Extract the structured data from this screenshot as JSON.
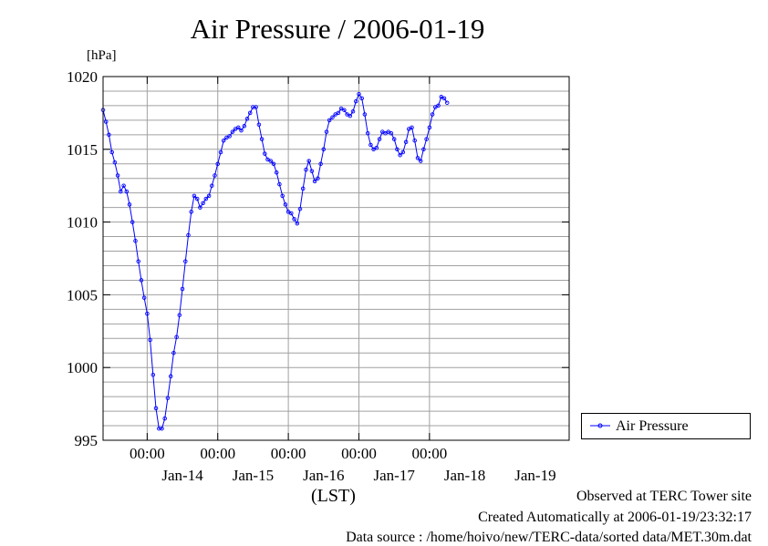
{
  "title": "Air Pressure / 2006-01-19",
  "y_unit": "[hPa]",
  "x_axis_label": "(LST)",
  "legend": {
    "label": "Air Pressure"
  },
  "footer": {
    "observed": "Observed at TERC Tower site",
    "created": "Created Automatically at 2006-01-19/23:32:17",
    "source": "Data source : /home/hoivo/new/TERC-data/sorted  data/MET.30m.dat"
  },
  "colors": {
    "series": "#0000ff",
    "grid": "#a0a0a0",
    "axis": "#000000"
  },
  "chart_data": {
    "type": "line",
    "title": "Air Pressure / 2006-01-19",
    "ylabel": "[hPa]",
    "xlabel": "(LST)",
    "ylim": [
      995,
      1020
    ],
    "y_ticks": [
      "995",
      "1000",
      "1005",
      "1010",
      "1015",
      "1020"
    ],
    "x_range": [
      "2006-01-13 09:00",
      "2006-01-19 23:30"
    ],
    "x_tick_times": [
      "2006-01-14 00:00",
      "2006-01-15 00:00",
      "2006-01-16 00:00",
      "2006-01-17 00:00",
      "2006-01-18 00:00"
    ],
    "x_tick_labels": [
      "00:00",
      "00:00",
      "00:00",
      "00:00",
      "00:00"
    ],
    "x_day_labels": [
      {
        "text": "Jan-14",
        "at": "2006-01-14 12:00"
      },
      {
        "text": "Jan-15",
        "at": "2006-01-15 12:00"
      },
      {
        "text": "Jan-16",
        "at": "2006-01-16 12:00"
      },
      {
        "text": "Jan-17",
        "at": "2006-01-17 12:00"
      },
      {
        "text": "Jan-18",
        "at": "2006-01-18 12:00"
      },
      {
        "text": "Jan-19",
        "at": "2006-01-19 12:00"
      }
    ],
    "grid": true,
    "legend_position": "right",
    "series": [
      {
        "name": "Air Pressure",
        "color": "#0000ff",
        "points": [
          [
            "2006-01-13 09:00",
            1017.7
          ],
          [
            "2006-01-13 10:00",
            1016.9
          ],
          [
            "2006-01-13 11:00",
            1016.0
          ],
          [
            "2006-01-13 12:00",
            1014.8
          ],
          [
            "2006-01-13 13:00",
            1014.1
          ],
          [
            "2006-01-13 14:00",
            1013.2
          ],
          [
            "2006-01-13 15:00",
            1012.1
          ],
          [
            "2006-01-13 16:00",
            1012.5
          ],
          [
            "2006-01-13 17:00",
            1012.1
          ],
          [
            "2006-01-13 18:00",
            1011.2
          ],
          [
            "2006-01-13 19:00",
            1010.0
          ],
          [
            "2006-01-13 20:00",
            1008.7
          ],
          [
            "2006-01-13 21:00",
            1007.3
          ],
          [
            "2006-01-13 22:00",
            1006.0
          ],
          [
            "2006-01-13 23:00",
            1004.8
          ],
          [
            "2006-01-14 00:00",
            1003.7
          ],
          [
            "2006-01-14 01:00",
            1001.9
          ],
          [
            "2006-01-14 02:00",
            999.5
          ],
          [
            "2006-01-14 03:00",
            997.2
          ],
          [
            "2006-01-14 04:00",
            995.8
          ],
          [
            "2006-01-14 05:00",
            995.8
          ],
          [
            "2006-01-14 06:00",
            996.5
          ],
          [
            "2006-01-14 07:00",
            997.9
          ],
          [
            "2006-01-14 08:00",
            999.4
          ],
          [
            "2006-01-14 09:00",
            1001.0
          ],
          [
            "2006-01-14 10:00",
            1002.1
          ],
          [
            "2006-01-14 11:00",
            1003.6
          ],
          [
            "2006-01-14 12:00",
            1005.4
          ],
          [
            "2006-01-14 13:00",
            1007.3
          ],
          [
            "2006-01-14 14:00",
            1009.1
          ],
          [
            "2006-01-14 15:00",
            1010.7
          ],
          [
            "2006-01-14 16:00",
            1011.8
          ],
          [
            "2006-01-14 17:00",
            1011.6
          ],
          [
            "2006-01-14 18:00",
            1011.0
          ],
          [
            "2006-01-14 19:00",
            1011.3
          ],
          [
            "2006-01-14 20:00",
            1011.6
          ],
          [
            "2006-01-14 21:00",
            1011.8
          ],
          [
            "2006-01-14 22:00",
            1012.5
          ],
          [
            "2006-01-14 23:00",
            1013.2
          ],
          [
            "2006-01-15 00:00",
            1014.0
          ],
          [
            "2006-01-15 01:00",
            1014.8
          ],
          [
            "2006-01-15 02:00",
            1015.6
          ],
          [
            "2006-01-15 03:00",
            1015.8
          ],
          [
            "2006-01-15 04:00",
            1015.9
          ],
          [
            "2006-01-15 05:00",
            1016.2
          ],
          [
            "2006-01-15 06:00",
            1016.4
          ],
          [
            "2006-01-15 07:00",
            1016.5
          ],
          [
            "2006-01-15 08:00",
            1016.3
          ],
          [
            "2006-01-15 09:00",
            1016.6
          ],
          [
            "2006-01-15 10:00",
            1017.1
          ],
          [
            "2006-01-15 11:00",
            1017.5
          ],
          [
            "2006-01-15 12:00",
            1017.9
          ],
          [
            "2006-01-15 13:00",
            1017.9
          ],
          [
            "2006-01-15 14:00",
            1016.7
          ],
          [
            "2006-01-15 15:00",
            1015.7
          ],
          [
            "2006-01-15 16:00",
            1014.7
          ],
          [
            "2006-01-15 17:00",
            1014.3
          ],
          [
            "2006-01-15 18:00",
            1014.2
          ],
          [
            "2006-01-15 19:00",
            1014.0
          ],
          [
            "2006-01-15 20:00",
            1013.4
          ],
          [
            "2006-01-15 21:00",
            1012.6
          ],
          [
            "2006-01-15 22:00",
            1011.8
          ],
          [
            "2006-01-15 23:00",
            1011.2
          ],
          [
            "2006-01-16 00:00",
            1010.7
          ],
          [
            "2006-01-16 01:00",
            1010.6
          ],
          [
            "2006-01-16 02:00",
            1010.2
          ],
          [
            "2006-01-16 03:00",
            1009.9
          ],
          [
            "2006-01-16 04:00",
            1010.9
          ],
          [
            "2006-01-16 05:00",
            1012.3
          ],
          [
            "2006-01-16 06:00",
            1013.6
          ],
          [
            "2006-01-16 07:00",
            1014.2
          ],
          [
            "2006-01-16 08:00",
            1013.5
          ],
          [
            "2006-01-16 09:00",
            1012.8
          ],
          [
            "2006-01-16 10:00",
            1013.0
          ],
          [
            "2006-01-16 11:00",
            1014.0
          ],
          [
            "2006-01-16 12:00",
            1015.0
          ],
          [
            "2006-01-16 13:00",
            1016.2
          ],
          [
            "2006-01-16 14:00",
            1017.0
          ],
          [
            "2006-01-16 15:00",
            1017.2
          ],
          [
            "2006-01-16 16:00",
            1017.4
          ],
          [
            "2006-01-16 17:00",
            1017.5
          ],
          [
            "2006-01-16 18:00",
            1017.8
          ],
          [
            "2006-01-16 19:00",
            1017.7
          ],
          [
            "2006-01-16 20:00",
            1017.4
          ],
          [
            "2006-01-16 21:00",
            1017.3
          ],
          [
            "2006-01-16 22:00",
            1017.6
          ],
          [
            "2006-01-16 23:00",
            1018.3
          ],
          [
            "2006-01-17 00:00",
            1018.8
          ],
          [
            "2006-01-17 01:00",
            1018.5
          ],
          [
            "2006-01-17 02:00",
            1017.4
          ],
          [
            "2006-01-17 03:00",
            1016.1
          ],
          [
            "2006-01-17 04:00",
            1015.3
          ],
          [
            "2006-01-17 05:00",
            1015.0
          ],
          [
            "2006-01-17 06:00",
            1015.1
          ],
          [
            "2006-01-17 07:00",
            1015.7
          ],
          [
            "2006-01-17 08:00",
            1016.2
          ],
          [
            "2006-01-17 09:00",
            1016.1
          ],
          [
            "2006-01-17 10:00",
            1016.2
          ],
          [
            "2006-01-17 11:00",
            1016.1
          ],
          [
            "2006-01-17 12:00",
            1015.7
          ],
          [
            "2006-01-17 13:00",
            1015.0
          ],
          [
            "2006-01-17 14:00",
            1014.6
          ],
          [
            "2006-01-17 15:00",
            1014.8
          ],
          [
            "2006-01-17 16:00",
            1015.5
          ],
          [
            "2006-01-17 17:00",
            1016.4
          ],
          [
            "2006-01-17 18:00",
            1016.5
          ],
          [
            "2006-01-17 19:00",
            1015.6
          ],
          [
            "2006-01-17 20:00",
            1014.4
          ],
          [
            "2006-01-17 21:00",
            1014.2
          ],
          [
            "2006-01-17 22:00",
            1015.0
          ],
          [
            "2006-01-17 23:00",
            1015.7
          ],
          [
            "2006-01-18 00:00",
            1016.5
          ],
          [
            "2006-01-18 01:00",
            1017.4
          ],
          [
            "2006-01-18 02:00",
            1017.9
          ],
          [
            "2006-01-18 03:00",
            1018.0
          ],
          [
            "2006-01-18 04:00",
            1018.6
          ],
          [
            "2006-01-18 05:00",
            1018.5
          ],
          [
            "2006-01-18 06:00",
            1018.2
          ]
        ]
      }
    ]
  }
}
